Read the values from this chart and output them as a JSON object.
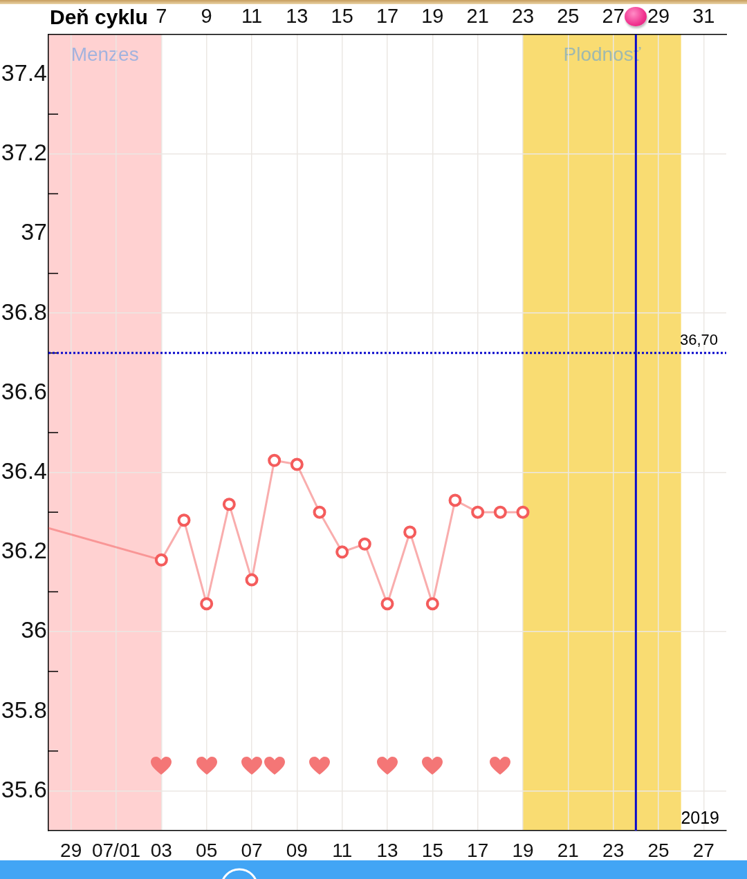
{
  "chart_data": {
    "type": "line",
    "x2label": "Deň cyklu",
    "xlim": [
      "2019-06-28",
      "2019-07-28"
    ],
    "xticks": [
      {
        "value": "2019-06-29",
        "label": "29"
      },
      {
        "value": "2019-07-01",
        "label": "07/01"
      },
      {
        "value": "2019-07-03",
        "label": "03"
      },
      {
        "value": "2019-07-05",
        "label": "05"
      },
      {
        "value": "2019-07-07",
        "label": "07"
      },
      {
        "value": "2019-07-09",
        "label": "09"
      },
      {
        "value": "2019-07-11",
        "label": "11"
      },
      {
        "value": "2019-07-13",
        "label": "13"
      },
      {
        "value": "2019-07-15",
        "label": "15"
      },
      {
        "value": "2019-07-17",
        "label": "17"
      },
      {
        "value": "2019-07-19",
        "label": "19"
      },
      {
        "value": "2019-07-21",
        "label": "21"
      },
      {
        "value": "2019-07-23",
        "label": "23"
      },
      {
        "value": "2019-07-25",
        "label": "25"
      },
      {
        "value": "2019-07-27",
        "label": "27"
      }
    ],
    "x2lim": [
      2,
      32
    ],
    "x2ticks": [
      7,
      9,
      11,
      13,
      15,
      17,
      19,
      21,
      23,
      25,
      27,
      29,
      31
    ],
    "ylim": [
      35.5,
      37.5
    ],
    "yticks": [
      35.6,
      {
        "value": 35.7,
        "label": null
      },
      35.8,
      {
        "value": 35.9,
        "label": null
      },
      36,
      {
        "value": 36.1,
        "label": null
      },
      36.2,
      {
        "value": 36.3,
        "label": null
      },
      36.4,
      {
        "value": 36.5,
        "label": null
      },
      36.6,
      {
        "value": 36.7,
        "label": null
      },
      36.8,
      {
        "value": 36.9,
        "label": null
      },
      37,
      {
        "value": 37.1,
        "label": null
      },
      37.2,
      {
        "value": 37.3,
        "label": null
      },
      37.4
    ],
    "grid": true,
    "line_style": "solid",
    "series": [
      {
        "color": "#f45c5c",
        "x": [
          "2019-06-28",
          "2019-07-03"
        ],
        "values": [
          36.26,
          36.18
        ]
      },
      {
        "color": "#f45c5c",
        "marker": "circle",
        "x": [
          "2019-07-03",
          "2019-07-04",
          "2019-07-05",
          "2019-07-06",
          "2019-07-07",
          "2019-07-08",
          "2019-07-09",
          "2019-07-10",
          "2019-07-11",
          "2019-07-12",
          "2019-07-13",
          "2019-07-14",
          "2019-07-15",
          "2019-07-16",
          "2019-07-17",
          "2019-07-18",
          "2019-07-19"
        ],
        "values": [
          36.18,
          36.28,
          36.07,
          36.32,
          36.13,
          36.43,
          36.42,
          36.3,
          36.2,
          36.22,
          36.07,
          36.25,
          36.07,
          36.33,
          36.3,
          36.3,
          36.3
        ]
      }
    ],
    "bands": [
      {
        "axis": "x",
        "from": "2019-06-28",
        "to": "2019-07-03",
        "label": "Menzes",
        "color": "#ffd1d1"
      },
      {
        "axis": "x",
        "from": "2019-07-19",
        "to": "2019-07-26",
        "label": "Plodnosť",
        "color": "#f9dc72"
      }
    ],
    "ref_lines": [
      {
        "axis": "y",
        "value": 36.7,
        "label": "36,70",
        "color": "#0a0acc",
        "line_style": "dotted"
      },
      {
        "axis": "x",
        "value": "2019-07-24",
        "color": "#0a0acc",
        "line_style": "solid"
      }
    ],
    "annotations": [
      "2019"
    ]
  }
}
